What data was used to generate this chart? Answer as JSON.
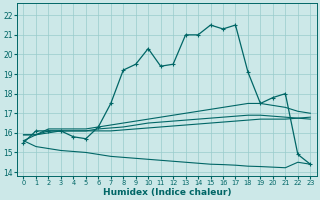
{
  "title": "",
  "xlabel": "Humidex (Indice chaleur)",
  "xlim": [
    -0.5,
    23.5
  ],
  "ylim": [
    13.8,
    22.6
  ],
  "yticks": [
    14,
    15,
    16,
    17,
    18,
    19,
    20,
    21,
    22
  ],
  "xticks": [
    0,
    1,
    2,
    3,
    4,
    5,
    6,
    7,
    8,
    9,
    10,
    11,
    12,
    13,
    14,
    15,
    16,
    17,
    18,
    19,
    20,
    21,
    22,
    23
  ],
  "bg_color": "#cce8e8",
  "grid_color": "#99cccc",
  "line_color": "#006666",
  "line1_y": [
    15.5,
    16.1,
    16.1,
    16.1,
    15.8,
    15.7,
    16.3,
    17.5,
    19.2,
    19.5,
    20.3,
    19.4,
    19.5,
    21.0,
    21.0,
    21.5,
    21.3,
    21.5,
    19.1,
    17.5,
    17.8,
    18.0,
    14.9,
    14.4
  ],
  "line2_y": [
    15.9,
    15.9,
    16.2,
    16.2,
    16.2,
    16.2,
    16.3,
    16.4,
    16.5,
    16.6,
    16.7,
    16.8,
    16.9,
    17.0,
    17.1,
    17.2,
    17.3,
    17.4,
    17.5,
    17.5,
    17.4,
    17.3,
    17.1,
    17.0
  ],
  "line3_y": [
    15.9,
    15.9,
    16.1,
    16.1,
    16.1,
    16.1,
    16.2,
    16.25,
    16.3,
    16.4,
    16.5,
    16.55,
    16.6,
    16.65,
    16.7,
    16.75,
    16.8,
    16.85,
    16.9,
    16.9,
    16.85,
    16.8,
    16.75,
    16.7
  ],
  "line4_y": [
    15.6,
    15.3,
    15.2,
    15.1,
    15.05,
    15.0,
    14.9,
    14.8,
    14.75,
    14.7,
    14.65,
    14.6,
    14.55,
    14.5,
    14.45,
    14.4,
    14.38,
    14.35,
    14.3,
    14.28,
    14.25,
    14.22,
    14.5,
    14.4
  ],
  "line5_y": [
    15.6,
    15.9,
    16.0,
    16.1,
    16.1,
    16.1,
    16.1,
    16.1,
    16.15,
    16.2,
    16.25,
    16.3,
    16.35,
    16.4,
    16.45,
    16.5,
    16.55,
    16.6,
    16.65,
    16.7,
    16.7,
    16.7,
    16.75,
    16.8
  ]
}
